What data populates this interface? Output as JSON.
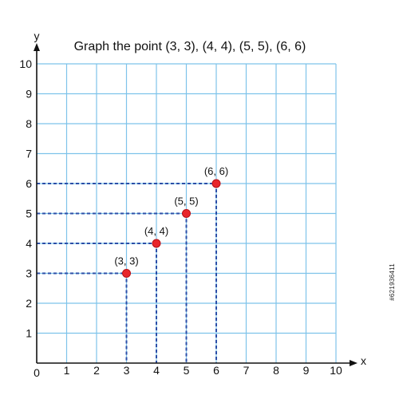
{
  "chart_data": {
    "type": "scatter",
    "title": "Graph the point (3, 3), (4, 4), (5, 5), (6, 6)",
    "xlabel": "x",
    "ylabel": "y",
    "xlim": [
      0,
      10
    ],
    "ylim": [
      0,
      10
    ],
    "origin_label": "0",
    "xticks": [
      1,
      2,
      3,
      4,
      5,
      6,
      7,
      8,
      9,
      10
    ],
    "yticks": [
      1,
      2,
      3,
      4,
      5,
      6,
      7,
      8,
      9,
      10
    ],
    "grid": true,
    "points": [
      {
        "x": 3,
        "y": 3,
        "label": "(3, 3)"
      },
      {
        "x": 4,
        "y": 4,
        "label": "(4, 4)"
      },
      {
        "x": 5,
        "y": 5,
        "label": "(5, 5)"
      },
      {
        "x": 6,
        "y": 6,
        "label": "(6, 6)"
      }
    ],
    "colors": {
      "grid": "#7ec3ea",
      "guide": "#2c4fa8",
      "point": "#e8262b",
      "axis": "#111111"
    }
  },
  "stock_id": "#621936411"
}
